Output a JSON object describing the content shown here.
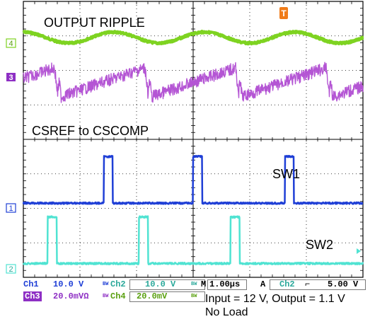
{
  "chart_data": {
    "type": "line",
    "title": "",
    "grid": true,
    "time_div": "1.00µs",
    "annotations": {
      "output_ripple": "OUTPUT RIPPLE",
      "csref": "CSREF to CSCOMP",
      "sw1": "SW1",
      "sw2": "SW2"
    },
    "markers": {
      "ch4": "4",
      "ch3": "3",
      "ch1": "1",
      "ch2": "2",
      "trigger": "T"
    },
    "series": [
      {
        "name": "Ch4",
        "color": "#7ed321",
        "kind": "ripple",
        "period_div": 1.6,
        "center_div": 1.05,
        "amplitude_div": 0.16
      },
      {
        "name": "Ch3",
        "color": "#b455d4",
        "kind": "sawtooth",
        "period_div": 1.6,
        "center_div": 2.3,
        "amplitude_div": 0.5
      },
      {
        "name": "Ch1",
        "color": "#1f3fd6",
        "kind": "pulse",
        "low_div": 5.85,
        "high_div": 4.5,
        "rising_edges_div": [
          1.42,
          3.0,
          4.62
        ],
        "width_div": 0.16
      },
      {
        "name": "Ch2",
        "color": "#50e3d2",
        "kind": "pulse",
        "low_div": 7.6,
        "high_div": 6.25,
        "rising_edges_div": [
          0.43,
          2.04,
          3.66
        ],
        "width_div": 0.16
      }
    ]
  },
  "status": {
    "ch1_label": "Ch1",
    "ch1_value": "10.0 V",
    "ch1_bw": "BW",
    "ch2_label": "Ch2",
    "ch2_value": "10.0 V",
    "ch2_bw": "BW",
    "m_label": "M",
    "m_value": "1.00µs",
    "trig_mode": "A",
    "trig_ch": "Ch2",
    "trig_slope": "⌐",
    "trig_level": "5.00 V",
    "ch3_label": "Ch3",
    "ch3_value": "20.0mVΩ",
    "ch3_bw": "BW",
    "ch4_label": "Ch4",
    "ch4_value": "20.0mV",
    "ch4_bw": "BW"
  },
  "caption": {
    "line1": "Input = 12 V, Output = 1.1 V",
    "line2": "No Load"
  },
  "colors": {
    "ch1": "#1f3fd6",
    "ch2": "#50e3d2",
    "ch3": "#b455d4",
    "ch4": "#7ed321",
    "trigger": "#f07c1a"
  }
}
